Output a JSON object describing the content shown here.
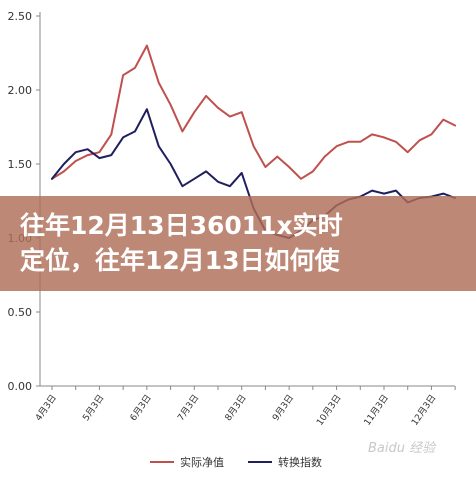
{
  "chart_data": {
    "type": "line",
    "ylim": [
      0.0,
      2.5
    ],
    "yticks": [
      "2.50",
      "2.00",
      "1.50",
      "1.00",
      "0.50",
      "0.00"
    ],
    "ytick_values": [
      2.5,
      2.0,
      1.5,
      1.0,
      0.5,
      0.0
    ],
    "x_labels": [
      "4月3日",
      "5月3日",
      "6月3日",
      "7月3日",
      "8月3日",
      "9月3日",
      "10月3日",
      "11月3日",
      "12月3日"
    ],
    "x_label_positions": [
      0,
      2,
      4,
      6,
      8,
      10,
      12,
      14,
      16
    ],
    "x_count": 18,
    "grid": false,
    "legend_position": "bottom",
    "series": [
      {
        "name": "实际净值",
        "color": "#c0504d",
        "x": [
          0,
          0.5,
          1,
          1.5,
          2,
          2.5,
          3,
          3.5,
          4,
          4.5,
          5,
          5.5,
          6,
          6.5,
          7,
          7.5,
          8,
          8.5,
          9,
          9.5,
          10,
          10.5,
          11,
          11.5,
          12,
          12.5,
          13,
          13.5,
          14,
          14.5,
          15,
          15.5,
          16,
          16.5,
          17
        ],
        "values": [
          1.4,
          1.45,
          1.52,
          1.56,
          1.58,
          1.7,
          2.1,
          2.15,
          2.3,
          2.05,
          1.9,
          1.72,
          1.85,
          1.96,
          1.88,
          1.82,
          1.85,
          1.62,
          1.48,
          1.55,
          1.48,
          1.4,
          1.45,
          1.55,
          1.62,
          1.65,
          1.65,
          1.7,
          1.68,
          1.65,
          1.58,
          1.66,
          1.7,
          1.8,
          1.76
        ]
      },
      {
        "name": "转换指数",
        "color": "#1f1f5f",
        "x": [
          0,
          0.5,
          1,
          1.5,
          2,
          2.5,
          3,
          3.5,
          4,
          4.5,
          5,
          5.5,
          6,
          6.5,
          7,
          7.5,
          8,
          8.5,
          9,
          9.5,
          10,
          10.5,
          11,
          11.5,
          12,
          12.5,
          13,
          13.5,
          14,
          14.5,
          15,
          15.5,
          16,
          16.5,
          17
        ],
        "values": [
          1.4,
          1.5,
          1.58,
          1.6,
          1.54,
          1.56,
          1.68,
          1.72,
          1.87,
          1.62,
          1.5,
          1.35,
          1.4,
          1.45,
          1.38,
          1.35,
          1.44,
          1.2,
          1.05,
          1.02,
          1.0,
          1.05,
          1.12,
          1.15,
          1.22,
          1.26,
          1.28,
          1.32,
          1.3,
          1.32,
          1.24,
          1.27,
          1.28,
          1.3,
          1.27
        ]
      }
    ]
  },
  "banner": {
    "line1": "往年12月13日36011x实时",
    "line2": "定位，往年12月13日如何使"
  },
  "watermark": "Baidu 经验"
}
